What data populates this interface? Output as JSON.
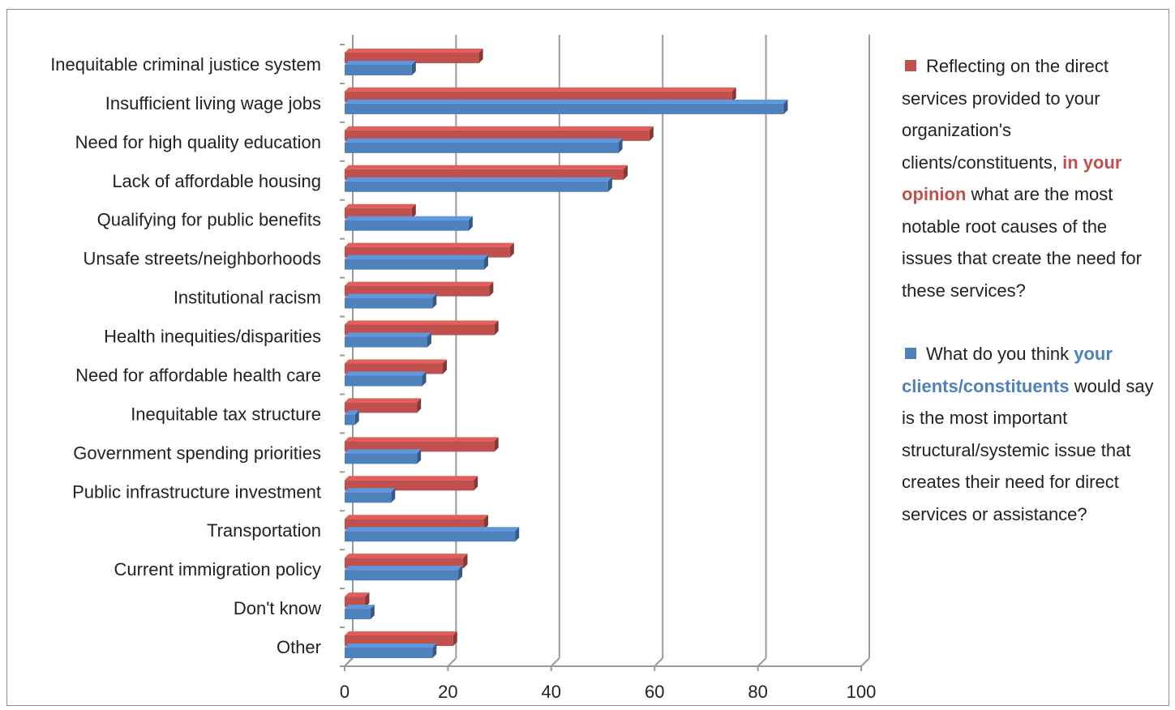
{
  "chart_data": {
    "type": "bar",
    "orientation": "horizontal",
    "categories": [
      "Inequitable criminal justice system",
      "Insufficient living wage jobs",
      "Need for high quality education",
      "Lack of affordable housing",
      "Qualifying for public benefits",
      "Unsafe streets/neighborhoods",
      "Institutional racism",
      "Health inequities/disparities",
      "Need for affordable health care",
      "Inequitable tax structure",
      "Government spending priorities",
      "Public infrastructure investment",
      "Transportation",
      "Current immigration policy",
      "Don't know",
      "Other"
    ],
    "series": [
      {
        "color": "#c0504d",
        "values": [
          26,
          75,
          59,
          54,
          13,
          32,
          28,
          29,
          19,
          14,
          29,
          25,
          27,
          23,
          4,
          21
        ]
      },
      {
        "color": "#4f81bd",
        "values": [
          13,
          85,
          53,
          51,
          24,
          27,
          17,
          16,
          15,
          2,
          14,
          9,
          33,
          22,
          5,
          17
        ]
      }
    ],
    "xlim": [
      0,
      100
    ],
    "xticks": [
      "0",
      "20",
      "40",
      "60",
      "80",
      "100"
    ],
    "grid": "vertical"
  },
  "legend": {
    "red": {
      "color": "#c0504d",
      "text_before": "Reflecting on the direct services provided to your organization's clients/constituents,",
      "highlight": "in your opinion",
      "text_after": "what are the most notable root causes of the issues that create the need for these services?"
    },
    "blue": {
      "color": "#4f81bd",
      "text_before": "What do you think",
      "highlight": "your clients/constituents",
      "text_after": "would say is the most important structural/systemic issue that creates their need for direct services or assistance?"
    }
  }
}
